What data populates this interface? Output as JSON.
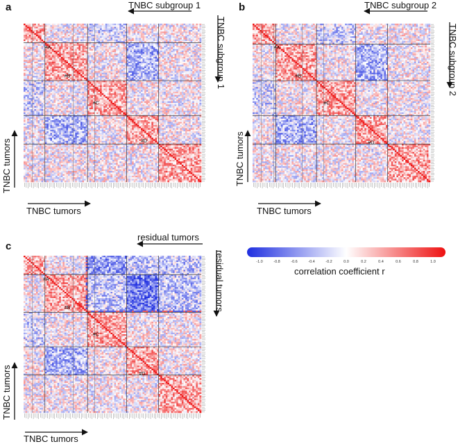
{
  "chart_data": [
    {
      "type": "heatmap",
      "panel": "a",
      "title_top": "TNBC subgroup 1",
      "title_right": "TNBC subgroup 1",
      "xlabel": "TNBC tumors",
      "ylabel": "TNBC tumors",
      "n_samples": 100,
      "value_range": [
        -1.0,
        1.0
      ],
      "diagonal_value": 1.0,
      "clusters": [
        "#A",
        "#B",
        "#C",
        "#D"
      ]
    },
    {
      "type": "heatmap",
      "panel": "b",
      "title_top": "TNBC subgroup 2",
      "title_right": "TNBC subgroup 2",
      "xlabel": "TNBC tumors",
      "ylabel": "TNBC tumors",
      "n_samples": 100,
      "value_range": [
        -1.0,
        1.0
      ],
      "diagonal_value": 1.0,
      "clusters": [
        "#A",
        "#B",
        "#C",
        "#D"
      ]
    },
    {
      "type": "heatmap",
      "panel": "c",
      "title_top": "residual tumors",
      "title_right": "residual tumors",
      "xlabel": "TNBC tumors",
      "ylabel": "TNBC tumors",
      "n_samples": 100,
      "value_range": [
        -1.0,
        1.0
      ],
      "diagonal_value": 1.0,
      "clusters": [
        "#A",
        "#B",
        "#C",
        "#D"
      ]
    }
  ],
  "panels": {
    "a": {
      "letter": "a",
      "top": "TNBC subgroup 1",
      "right": "TNBC subgroup 1",
      "bottom": "TNBC tumors",
      "left": "TNBC tumors"
    },
    "b": {
      "letter": "b",
      "top": "TNBC subgroup 2",
      "right": "TNBC subgroup 2",
      "bottom": "TNBC tumors",
      "left": "TNBC tumors"
    },
    "c": {
      "letter": "c",
      "top": "residual tumors",
      "right": "residual tumors",
      "bottom": "TNBC tumors",
      "left": "TNBC tumors"
    }
  },
  "cluster_labels": [
    "#A",
    "#B",
    "#C",
    "#D"
  ],
  "legend": {
    "title": "correlation coefficient r",
    "ticks": [
      "-1.0",
      "-0.8",
      "-0.6",
      "-0.4",
      "-0.2",
      "0.0",
      "0.2",
      "0.4",
      "0.6",
      "0.8",
      "1.0"
    ],
    "colors": {
      "low": "#1f2fe0",
      "mid": "#ffffff",
      "high": "#ee1111"
    }
  }
}
